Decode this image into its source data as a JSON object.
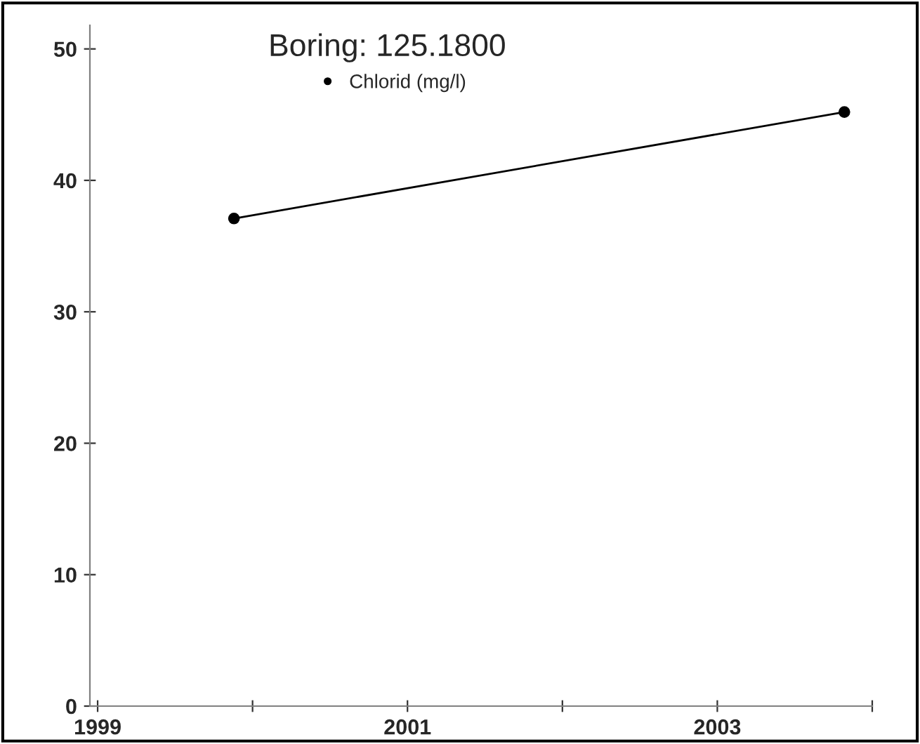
{
  "chart_data": {
    "type": "line",
    "title": "Boring: 125.1800",
    "x": [
      1999.88,
      2003.82
    ],
    "series": [
      {
        "name": "Chlorid (mg/l)",
        "color": "#000000",
        "values": [
          37.1,
          45.2
        ]
      }
    ],
    "xlim": [
      1998.95,
      2004.0
    ],
    "xticks": [
      1999,
      {
        "value": 2000,
        "label": null
      },
      2001,
      {
        "value": 2002,
        "label": null
      },
      2003,
      {
        "value": 2004,
        "label": null
      }
    ],
    "ylim": [
      0,
      51.8
    ],
    "yticks": [
      0,
      10,
      20,
      30,
      40,
      50
    ],
    "marker": "circle",
    "line_style": "solid",
    "legend": "top",
    "grid": false
  }
}
